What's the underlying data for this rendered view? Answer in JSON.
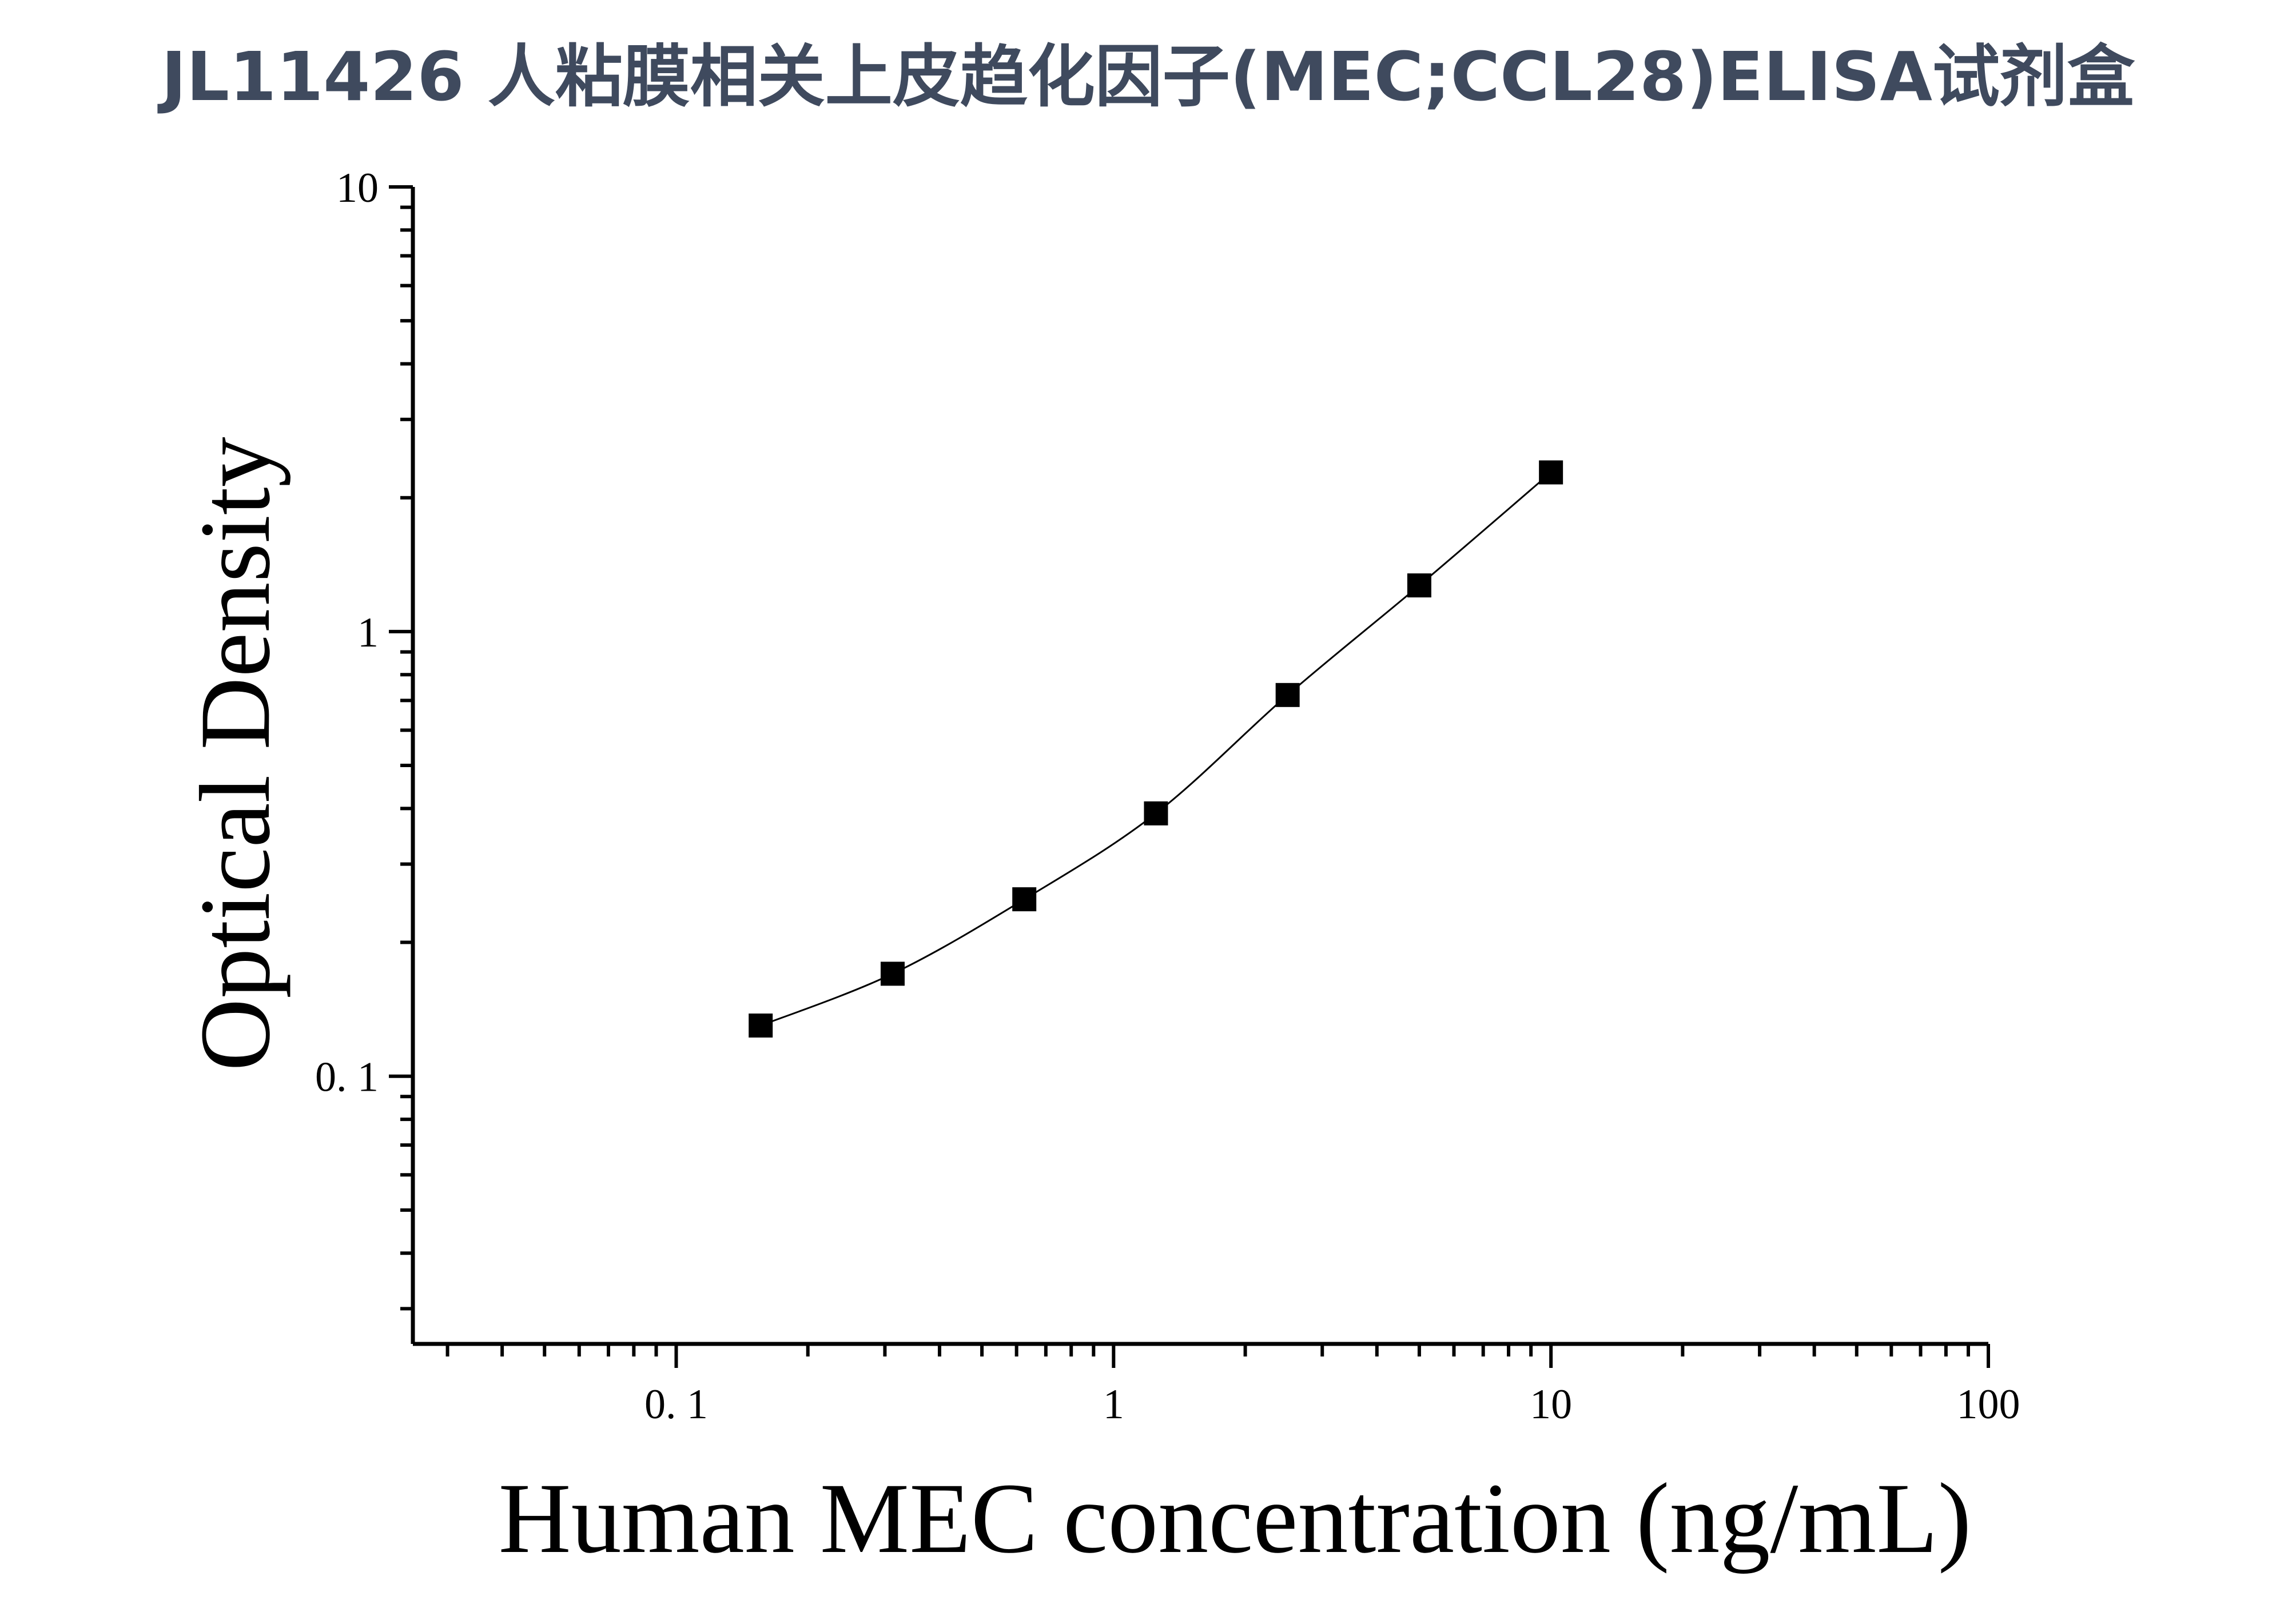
{
  "title": "JL11426 人粘膜相关上皮趋化因子(MEC;CCL28)ELISA试剂盒",
  "chart_data": {
    "type": "scatter",
    "title": "JL11426 人粘膜相关上皮趋化因子(MEC;CCL28)ELISA试剂盒",
    "xlabel": "Human MEC concentration (ng/mL)",
    "ylabel": "Optical Density",
    "x_scale": "log",
    "y_scale": "log",
    "xlim": [
      0.025,
      100
    ],
    "ylim": [
      0.025,
      10
    ],
    "x_ticks": [
      {
        "value": 0.1,
        "label": "0. 1"
      },
      {
        "value": 1,
        "label": "1"
      },
      {
        "value": 10,
        "label": "10"
      },
      {
        "value": 100,
        "label": "100"
      }
    ],
    "y_ticks": [
      {
        "value": 0.1,
        "label": "0. 1"
      },
      {
        "value": 1,
        "label": "1"
      },
      {
        "value": 10,
        "label": "10"
      }
    ],
    "grid": false,
    "legend": "none",
    "series": [
      {
        "x": [
          0.156,
          0.3125,
          0.625,
          1.25,
          2.5,
          5,
          10
        ],
        "y": [
          0.13,
          0.17,
          0.25,
          0.39,
          0.72,
          1.27,
          2.28
        ],
        "marker": "square",
        "fit_line": true,
        "color": "#000000"
      }
    ]
  }
}
